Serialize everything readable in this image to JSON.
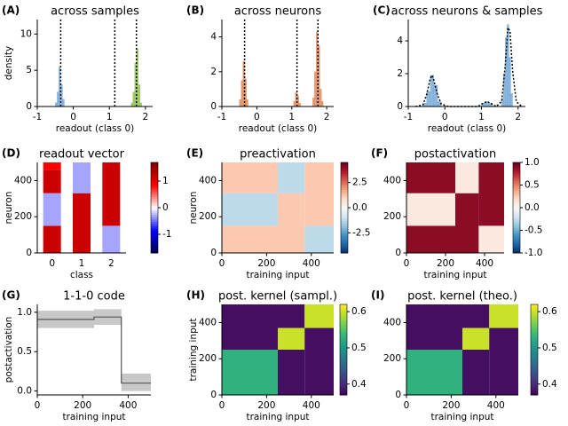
{
  "chart_data": [
    {
      "type": "histogram",
      "label": "(A)",
      "title": "across samples",
      "xlabel": "readout (class 0)",
      "ylabel": "density",
      "xlim": [
        -1,
        2.2
      ],
      "ylim": [
        0,
        12
      ],
      "xticks": [
        -1,
        0,
        1,
        2
      ],
      "yticks": [
        0,
        5,
        10
      ],
      "series": [
        {
          "color": "#6fa6d6",
          "bins": [
            -0.5,
            -0.45,
            -0.4,
            -0.35,
            -0.3,
            -0.25
          ],
          "counts": [
            0.5,
            2,
            5.5,
            3,
            1
          ]
        },
        {
          "color": "#8cbf4e",
          "bins": [
            1.6,
            1.65,
            1.7,
            1.75,
            1.8,
            1.85,
            1.9
          ],
          "counts": [
            0.5,
            2,
            6,
            8,
            3,
            0.5
          ]
        }
      ],
      "vlines": [
        -0.35,
        1.15,
        1.75
      ]
    },
    {
      "type": "histogram",
      "label": "(B)",
      "title": "across neurons",
      "xlabel": "readout (class 0)",
      "xlim": [
        -1,
        2.2
      ],
      "ylim": [
        0,
        5
      ],
      "xticks": [
        -1,
        0,
        1,
        2
      ],
      "yticks": [
        0,
        2,
        4
      ],
      "series": [
        {
          "color": "#dd8452",
          "bins": [
            -0.5,
            -0.45,
            -0.4,
            -0.35,
            -0.3,
            -0.25
          ],
          "counts": [
            0.4,
            1.5,
            2.6,
            1.6,
            0.4
          ]
        },
        {
          "color": "#dd8452",
          "bins": [
            1.05,
            1.1,
            1.15,
            1.2,
            1.25
          ],
          "counts": [
            0.3,
            0.8,
            0.6,
            0.2
          ]
        },
        {
          "color": "#dd8452",
          "bins": [
            1.6,
            1.65,
            1.7,
            1.75,
            1.8,
            1.85,
            1.9
          ],
          "counts": [
            0.5,
            2,
            4.3,
            3.5,
            1,
            0.3
          ]
        }
      ],
      "vlines": [
        -0.35,
        1.15,
        1.75
      ]
    },
    {
      "type": "histogram",
      "label": "(C)",
      "title": "across neurons & samples",
      "xlabel": "readout (class 0)",
      "xlim": [
        -1,
        2.2
      ],
      "ylim": [
        0,
        5.3
      ],
      "xticks": [
        -1,
        0,
        1,
        2
      ],
      "yticks": [
        0,
        2,
        4
      ],
      "series": [
        {
          "color": "#6fa6d6",
          "bins": [
            -0.6,
            -0.5,
            -0.4,
            -0.3,
            -0.2,
            -0.1
          ],
          "counts": [
            0.2,
            0.9,
            1.9,
            1.3,
            0.3
          ]
        },
        {
          "color": "#6fa6d6",
          "bins": [
            1.0,
            1.1,
            1.2,
            1.3
          ],
          "counts": [
            0.2,
            0.3,
            0.2
          ]
        },
        {
          "color": "#6fa6d6",
          "bins": [
            1.55,
            1.6,
            1.65,
            1.7,
            1.75,
            1.8,
            1.85
          ],
          "counts": [
            0.5,
            2,
            4.2,
            5,
            3,
            0.8
          ]
        }
      ],
      "curves": [
        {
          "x": [
            -0.8,
            -0.6,
            -0.5,
            -0.4,
            -0.35,
            -0.3,
            -0.2,
            -0.1,
            0.1,
            0.9,
            1.05,
            1.15,
            1.25,
            1.4,
            1.55,
            1.65,
            1.72,
            1.78,
            1.85,
            1.95,
            2.1
          ],
          "y": [
            0,
            0.1,
            0.7,
            1.7,
            1.9,
            1.6,
            0.7,
            0.15,
            0,
            0,
            0.2,
            0.3,
            0.2,
            0,
            0.3,
            2.5,
            4.8,
            4.6,
            2.2,
            0.3,
            0
          ]
        }
      ]
    },
    {
      "type": "column-heatmap",
      "label": "(D)",
      "title": "readout vector",
      "xlabel": "class",
      "ylabel": "neuron",
      "categories": [
        "0",
        "1",
        "2"
      ],
      "ylim": [
        0,
        500
      ],
      "yticks": [
        0,
        200,
        400
      ],
      "colormap": "seismic",
      "clim": [
        -1.7,
        1.7
      ],
      "cticks": [
        -1,
        0,
        1
      ],
      "columns": [
        {
          "blocks": [
            {
              "y0": 0,
              "y1": 150,
              "value": 1.2
            },
            {
              "y0": 150,
              "y1": 330,
              "value": -0.3
            },
            {
              "y0": 330,
              "y1": 460,
              "value": 1.2
            },
            {
              "y0": 460,
              "y1": 500,
              "value": 0.85
            }
          ]
        },
        {
          "blocks": [
            {
              "y0": 0,
              "y1": 330,
              "value": 1.2
            },
            {
              "y0": 330,
              "y1": 500,
              "value": -0.3
            }
          ]
        },
        {
          "blocks": [
            {
              "y0": 0,
              "y1": 150,
              "value": -0.3
            },
            {
              "y0": 150,
              "y1": 500,
              "value": 1.2
            }
          ]
        }
      ]
    },
    {
      "type": "heatmap",
      "label": "(E)",
      "title": "preactivation",
      "xlabel": "training input",
      "ylabel": "neuron",
      "xlim": [
        0,
        500
      ],
      "ylim": [
        0,
        500
      ],
      "xticks": [
        0,
        200,
        400
      ],
      "yticks": [
        0,
        200,
        400
      ],
      "colormap": "RdBu_r",
      "clim": [
        -4.5,
        4.5
      ],
      "cticks": [
        -2.5,
        {
          "value": 0,
          "label": "0.0"
        },
        2.5
      ],
      "blocks": [
        {
          "x0": 0,
          "x1": 250,
          "y0": 0,
          "y1": 150,
          "value": 1.2
        },
        {
          "x0": 0,
          "x1": 250,
          "y0": 150,
          "y1": 330,
          "value": -1.2
        },
        {
          "x0": 0,
          "x1": 250,
          "y0": 330,
          "y1": 500,
          "value": 1.2
        },
        {
          "x0": 250,
          "x1": 370,
          "y0": 0,
          "y1": 330,
          "value": 1.2
        },
        {
          "x0": 250,
          "x1": 370,
          "y0": 330,
          "y1": 500,
          "value": -1.2
        },
        {
          "x0": 370,
          "x1": 500,
          "y0": 0,
          "y1": 150,
          "value": -1.2
        },
        {
          "x0": 370,
          "x1": 500,
          "y0": 150,
          "y1": 500,
          "value": 1.2
        }
      ]
    },
    {
      "type": "heatmap",
      "label": "(F)",
      "title": "postactivation",
      "xlabel": "training input",
      "xlim": [
        0,
        500
      ],
      "ylim": [
        0,
        500
      ],
      "xticks": [
        0,
        200,
        400
      ],
      "yticks": [
        0,
        200,
        400
      ],
      "colormap": "RdBu_r",
      "clim": [
        -1,
        1
      ],
      "cticks": [
        {
          "value": -1,
          "label": "-1.0"
        },
        -0.5,
        {
          "value": 0,
          "label": "0.0"
        },
        0.5,
        {
          "value": 1,
          "label": "1.0"
        }
      ],
      "blocks": [
        {
          "x0": 0,
          "x1": 250,
          "y0": 0,
          "y1": 150,
          "value": 0.9
        },
        {
          "x0": 0,
          "x1": 250,
          "y0": 150,
          "y1": 330,
          "value": 0.1
        },
        {
          "x0": 0,
          "x1": 250,
          "y0": 330,
          "y1": 500,
          "value": 0.9
        },
        {
          "x0": 250,
          "x1": 370,
          "y0": 0,
          "y1": 330,
          "value": 0.9
        },
        {
          "x0": 250,
          "x1": 370,
          "y0": 330,
          "y1": 500,
          "value": 0.1
        },
        {
          "x0": 370,
          "x1": 500,
          "y0": 0,
          "y1": 150,
          "value": 0.1
        },
        {
          "x0": 370,
          "x1": 500,
          "y0": 150,
          "y1": 500,
          "value": 0.9
        }
      ]
    },
    {
      "type": "line",
      "label": "(G)",
      "title": "1-1-0 code",
      "xlabel": "training input",
      "ylabel": "postactivation",
      "xlim": [
        0,
        500
      ],
      "ylim": [
        -0.05,
        1.1
      ],
      "xticks": [
        0,
        200,
        400
      ],
      "yticks": [
        {
          "value": 0,
          "label": "0.0"
        },
        0.5,
        {
          "value": 1,
          "label": "1.0"
        }
      ],
      "band": {
        "color": "#c8c8c8",
        "x": [
          0,
          250,
          250,
          370,
          370,
          500
        ],
        "lower": [
          0.8,
          0.8,
          0.84,
          0.84,
          0,
          0
        ],
        "upper": [
          1.02,
          1.02,
          1.04,
          1.04,
          0.22,
          0.22
        ]
      },
      "series": [
        {
          "color": "#555555",
          "x": [
            0,
            250,
            250,
            370,
            370,
            500
          ],
          "values": [
            0.91,
            0.91,
            0.94,
            0.94,
            0.1,
            0.1
          ]
        }
      ]
    },
    {
      "type": "heatmap",
      "label": "(H)",
      "title": "post. kernel (sampl.)",
      "xlabel": "training input",
      "ylabel": "training input",
      "xlim": [
        0,
        500
      ],
      "ylim": [
        0,
        500
      ],
      "xticks": [
        0,
        200,
        400
      ],
      "yticks": [
        0,
        200,
        400
      ],
      "colormap": "viridis",
      "clim": [
        0.37,
        0.62
      ],
      "cticks": [
        0.4,
        0.5,
        0.6
      ],
      "blocks": [
        {
          "x0": 0,
          "x1": 250,
          "y0": 0,
          "y1": 250,
          "value": 0.53
        },
        {
          "x0": 0,
          "x1": 250,
          "y0": 250,
          "y1": 500,
          "value": 0.38
        },
        {
          "x0": 250,
          "x1": 370,
          "y0": 0,
          "y1": 250,
          "value": 0.38
        },
        {
          "x0": 250,
          "x1": 370,
          "y0": 250,
          "y1": 370,
          "value": 0.6
        },
        {
          "x0": 250,
          "x1": 370,
          "y0": 370,
          "y1": 500,
          "value": 0.38
        },
        {
          "x0": 370,
          "x1": 500,
          "y0": 0,
          "y1": 370,
          "value": 0.38
        },
        {
          "x0": 370,
          "x1": 500,
          "y0": 370,
          "y1": 500,
          "value": 0.6
        }
      ]
    },
    {
      "type": "heatmap",
      "label": "(I)",
      "title": "post. kernel (theo.)",
      "xlabel": "training input",
      "xlim": [
        0,
        500
      ],
      "ylim": [
        0,
        500
      ],
      "xticks": [
        0,
        200,
        400
      ],
      "yticks": [
        0,
        200,
        400
      ],
      "colormap": "viridis",
      "clim": [
        0.37,
        0.62
      ],
      "cticks": [
        0.4,
        0.5,
        0.6
      ],
      "blocks": [
        {
          "x0": 0,
          "x1": 250,
          "y0": 0,
          "y1": 250,
          "value": 0.53
        },
        {
          "x0": 0,
          "x1": 250,
          "y0": 250,
          "y1": 500,
          "value": 0.38
        },
        {
          "x0": 250,
          "x1": 370,
          "y0": 0,
          "y1": 250,
          "value": 0.38
        },
        {
          "x0": 250,
          "x1": 370,
          "y0": 250,
          "y1": 370,
          "value": 0.6
        },
        {
          "x0": 250,
          "x1": 370,
          "y0": 370,
          "y1": 500,
          "value": 0.38
        },
        {
          "x0": 370,
          "x1": 500,
          "y0": 0,
          "y1": 370,
          "value": 0.38
        },
        {
          "x0": 370,
          "x1": 500,
          "y0": 370,
          "y1": 500,
          "value": 0.6
        }
      ]
    }
  ]
}
